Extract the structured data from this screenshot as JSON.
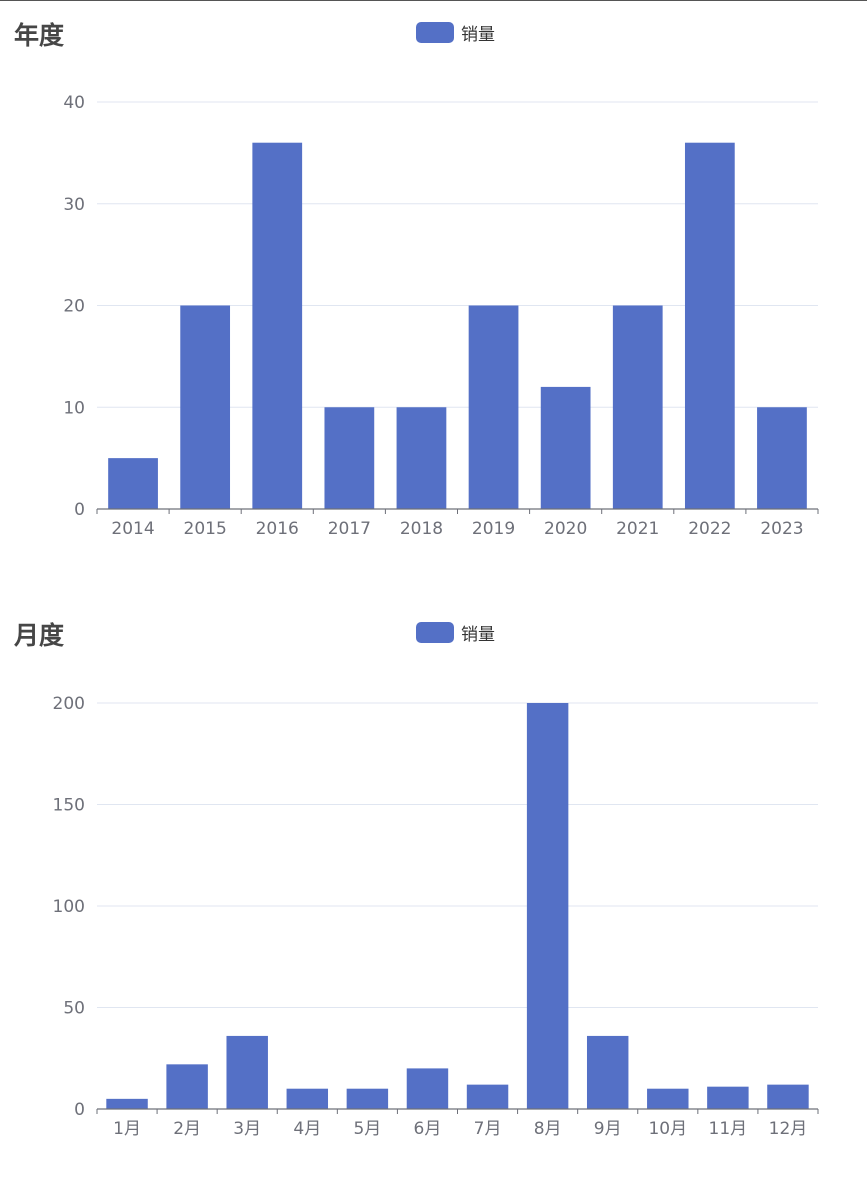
{
  "colors": {
    "bar": "#5470c6",
    "grid": "#e0e6f1",
    "axis": "#6e7079",
    "title": "#464646"
  },
  "chart_data": [
    {
      "type": "bar",
      "title": "年度",
      "legend": {
        "position": "top-center",
        "entries": [
          "销量"
        ]
      },
      "categories": [
        "2014",
        "2015",
        "2016",
        "2017",
        "2018",
        "2019",
        "2020",
        "2021",
        "2022",
        "2023"
      ],
      "series": [
        {
          "name": "销量",
          "values": [
            5,
            20,
            36,
            10,
            10,
            20,
            12,
            20,
            36,
            10
          ]
        }
      ],
      "ylim": [
        0,
        40
      ],
      "yticks": [
        0,
        10,
        20,
        30,
        40
      ],
      "grid": true
    },
    {
      "type": "bar",
      "title": "月度",
      "legend": {
        "position": "top-center",
        "entries": [
          "销量"
        ]
      },
      "categories": [
        "1月",
        "2月",
        "3月",
        "4月",
        "5月",
        "6月",
        "7月",
        "8月",
        "9月",
        "10月",
        "11月",
        "12月"
      ],
      "series": [
        {
          "name": "销量",
          "values": [
            5,
            22,
            36,
            10,
            10,
            20,
            12,
            200,
            36,
            10,
            11,
            12
          ]
        }
      ],
      "ylim": [
        0,
        200
      ],
      "yticks": [
        0,
        50,
        100,
        150,
        200
      ],
      "grid": true
    }
  ]
}
